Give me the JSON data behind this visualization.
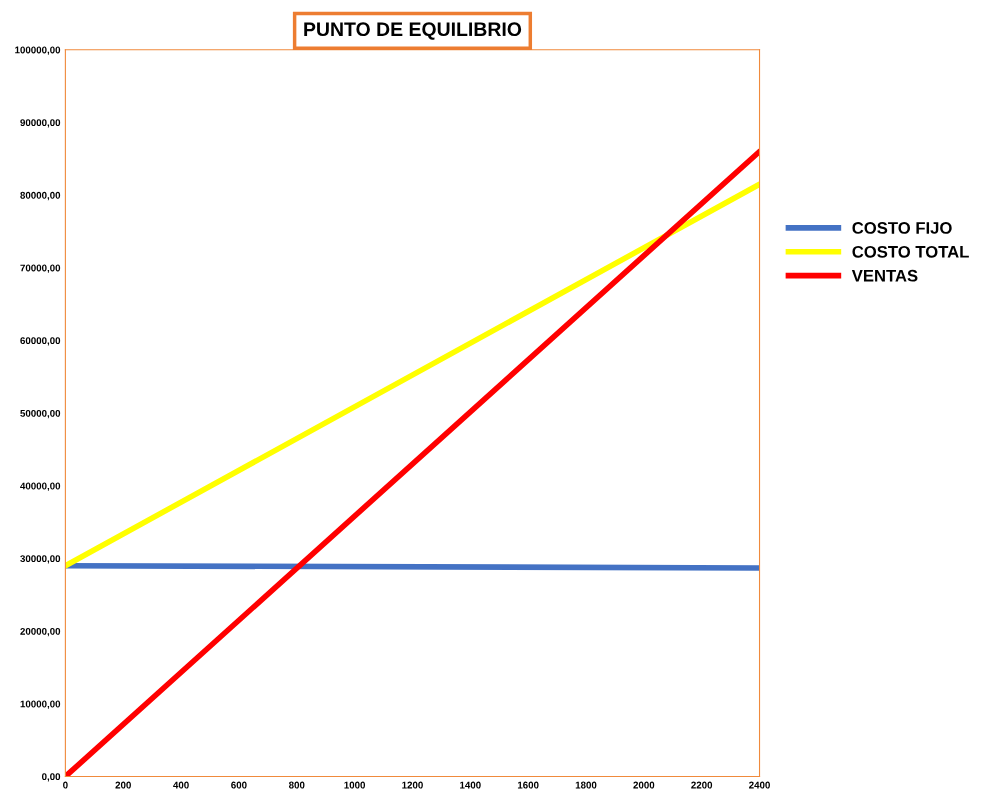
{
  "chart_data": {
    "type": "line",
    "title": "PUNTO DE EQUILIBRIO",
    "x": [
      0,
      2400
    ],
    "series": [
      {
        "name": "COSTO FIJO",
        "color": "#4472c4",
        "values": [
          29000,
          28700
        ]
      },
      {
        "name": "COSTO TOTAL",
        "color": "#ffff00",
        "values": [
          29000,
          81500
        ]
      },
      {
        "name": "VENTAS",
        "color": "#ff0000",
        "values": [
          0,
          86000
        ]
      }
    ],
    "xlim": [
      0,
      2400
    ],
    "xticks": [
      0,
      200,
      400,
      600,
      800,
      1000,
      1200,
      1400,
      1600,
      1800,
      2000,
      2200,
      2400
    ],
    "ylim": [
      0,
      100000
    ],
    "yticks": [
      {
        "value": 0,
        "label": "0,00"
      },
      {
        "value": 10000,
        "label": "10000,00"
      },
      {
        "value": 20000,
        "label": "20000,00"
      },
      {
        "value": 30000,
        "label": "30000,00"
      },
      {
        "value": 40000,
        "label": "40000,00"
      },
      {
        "value": 50000,
        "label": "50000,00"
      },
      {
        "value": 60000,
        "label": "60000,00"
      },
      {
        "value": 70000,
        "label": "70000,00"
      },
      {
        "value": 80000,
        "label": "80000,00"
      },
      {
        "value": 90000,
        "label": "90000,00"
      },
      {
        "value": 100000,
        "label": "100000,00"
      }
    ],
    "grid": false,
    "legend": "right",
    "marker": "none",
    "line_style": "solid"
  }
}
